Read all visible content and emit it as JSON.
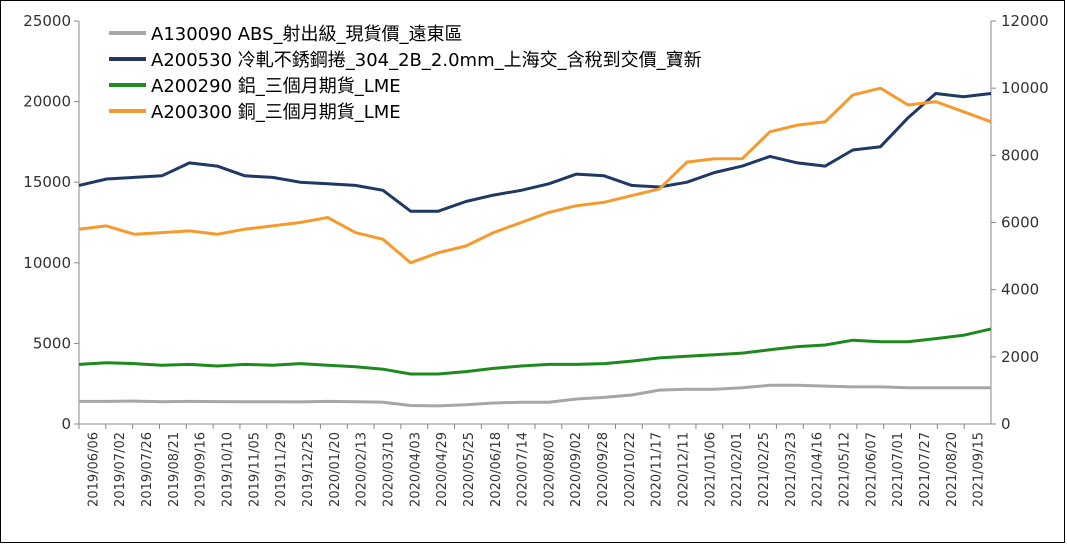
{
  "chart_data": {
    "type": "line",
    "title": "",
    "xlabel": "",
    "ylabel": "",
    "y_left": {
      "min": 0,
      "max": 25000,
      "ticks": [
        "0",
        "5000",
        "10000",
        "15000",
        "20000",
        "25000"
      ]
    },
    "y_right": {
      "min": 0,
      "max": 12000,
      "ticks": [
        "0",
        "2000",
        "4000",
        "6000",
        "8000",
        "10000",
        "12000"
      ]
    },
    "x_ticks": [
      "2019/06/06",
      "2019/07/02",
      "2019/07/26",
      "2019/08/21",
      "2019/09/16",
      "2019/10/10",
      "2019/11/05",
      "2019/11/29",
      "2019/12/25",
      "2020/01/20",
      "2020/02/13",
      "2020/03/10",
      "2020/04/03",
      "2020/04/29",
      "2020/05/25",
      "2020/06/18",
      "2020/07/14",
      "2020/08/07",
      "2020/09/02",
      "2020/09/28",
      "2020/10/22",
      "2020/11/17",
      "2020/12/11",
      "2021/01/06",
      "2021/02/01",
      "2021/02/25",
      "2021/03/23",
      "2021/04/16",
      "2021/05/12",
      "2021/06/07",
      "2021/07/01",
      "2021/07/27",
      "2021/08/20",
      "2021/09/15"
    ],
    "grid": false,
    "legend_position": "top-left",
    "series": [
      {
        "name": "A130090 ABS_射出級_現貨價_遠東區",
        "axis": "left",
        "color": "#a6a6a6",
        "values": [
          1400,
          1400,
          1420,
          1380,
          1400,
          1390,
          1380,
          1380,
          1370,
          1400,
          1380,
          1350,
          1150,
          1120,
          1200,
          1300,
          1350,
          1350,
          1550,
          1650,
          1800,
          2100,
          2150,
          2150,
          2250,
          2400,
          2400,
          2350,
          2300,
          2300,
          2250,
          2250,
          2250,
          2250
        ]
      },
      {
        "name": "A200530 冷軋不銹鋼捲_304_2B_2.0mm_上海交_含稅到交價_寶新",
        "axis": "left",
        "color": "#1f3864",
        "values": [
          14800,
          15200,
          15300,
          15400,
          16200,
          16000,
          15400,
          15300,
          15000,
          14900,
          14800,
          14500,
          13200,
          13200,
          13800,
          14200,
          14500,
          14900,
          15500,
          15400,
          14800,
          14700,
          15000,
          15600,
          16000,
          16600,
          16200,
          16000,
          17000,
          17200,
          19000,
          20500,
          20300,
          20500
        ]
      },
      {
        "name": "A200290 鋁_三個月期貨_LME",
        "axis": "left",
        "color": "#1e8a1e",
        "values": [
          3700,
          3800,
          3750,
          3650,
          3700,
          3600,
          3700,
          3650,
          3750,
          3650,
          3550,
          3400,
          3100,
          3100,
          3250,
          3450,
          3600,
          3700,
          3700,
          3750,
          3900,
          4100,
          4200,
          4300,
          4400,
          4600,
          4800,
          4900,
          5200,
          5100,
          5100,
          5300,
          5500,
          5900
        ]
      },
      {
        "name": "A200300 銅_三個月期貨_LME",
        "axis": "right",
        "color": "#f79a2e",
        "values": [
          5800,
          5900,
          5650,
          5700,
          5750,
          5650,
          5800,
          5900,
          6000,
          6150,
          5700,
          5500,
          4800,
          5100,
          5300,
          5700,
          6000,
          6300,
          6500,
          6600,
          6800,
          7000,
          7800,
          7900,
          7900,
          8700,
          8900,
          9000,
          9800,
          10000,
          9500,
          9600,
          9300,
          9000
        ]
      }
    ]
  }
}
